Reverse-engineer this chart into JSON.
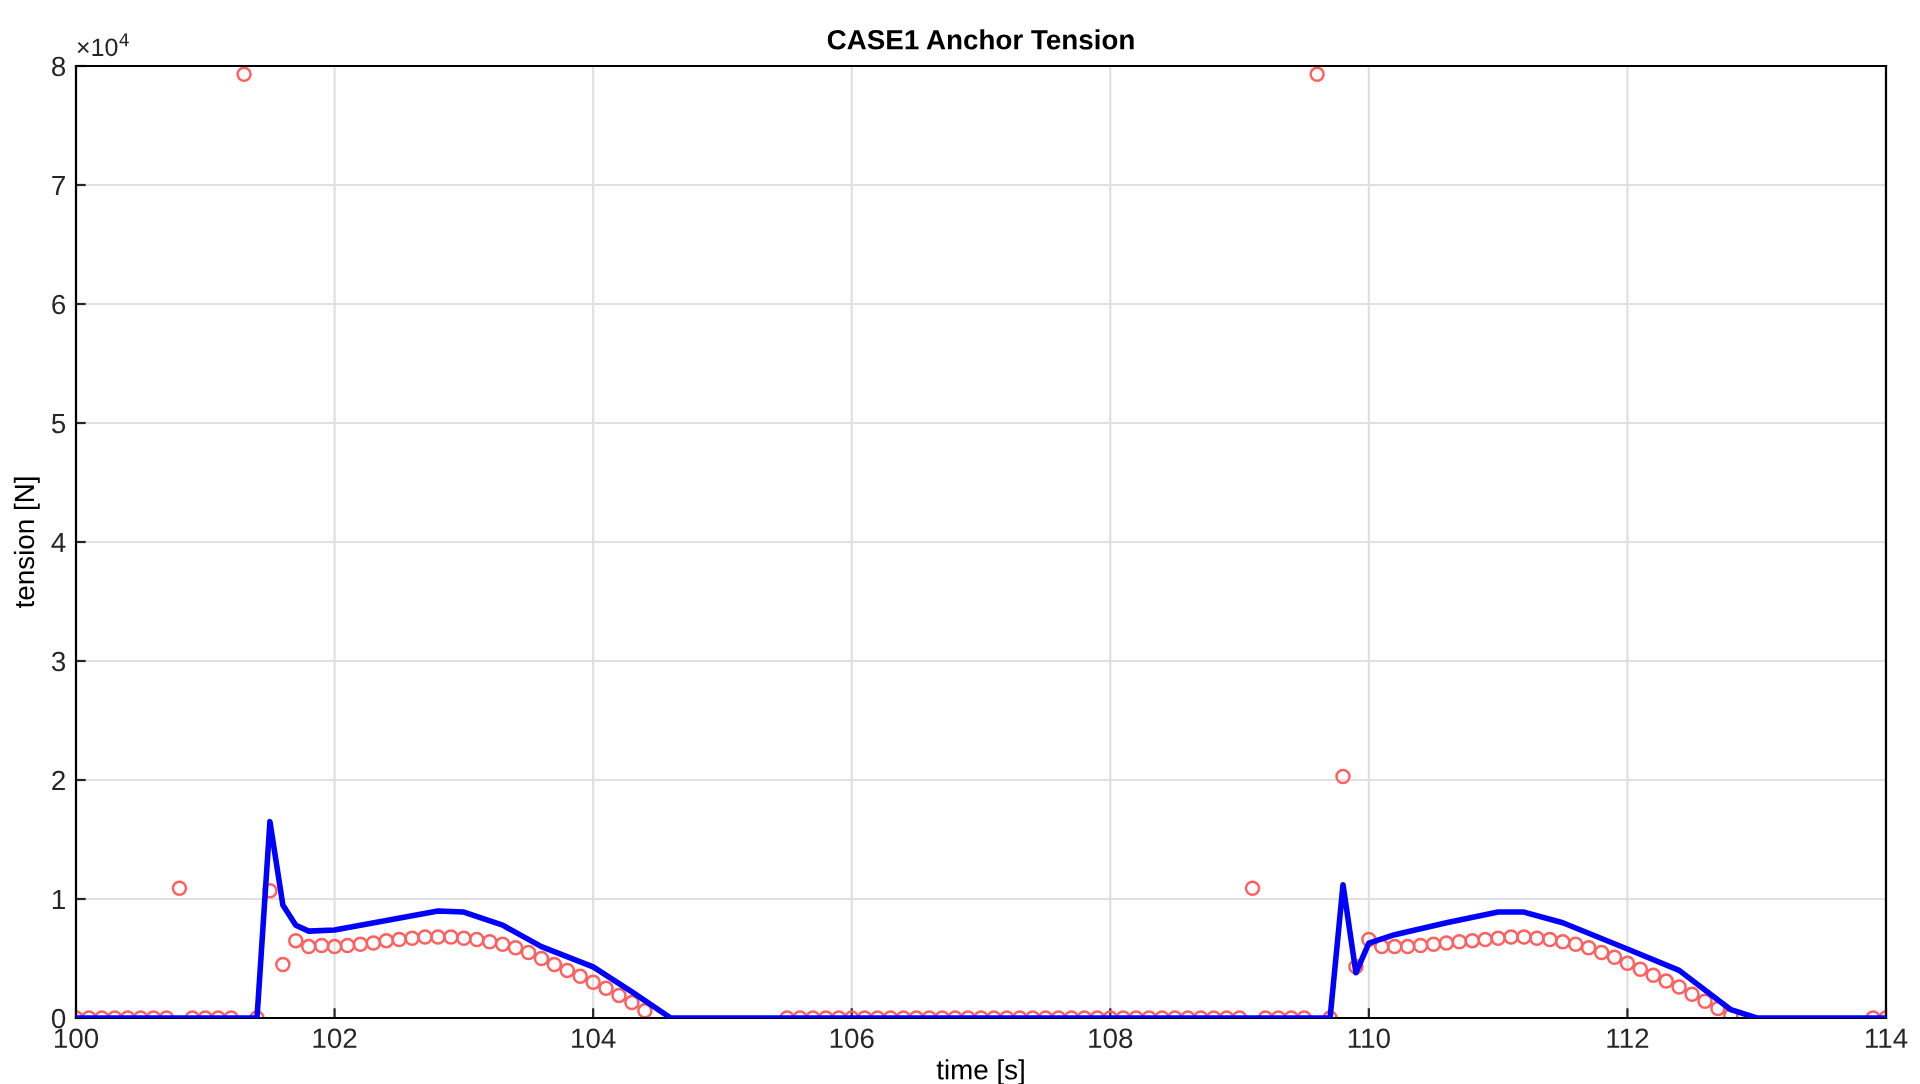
{
  "chart_data": {
    "type": "line",
    "title": "CASE1 Anchor Tension",
    "xlabel": "time [s]",
    "ylabel": "tension [N]",
    "annotations": [
      "×10$^{4}$"
    ],
    "xlim": [
      100,
      114
    ],
    "xticks": [
      100,
      102,
      104,
      106,
      108,
      110,
      112,
      114
    ],
    "ylim": [
      0,
      8
    ],
    "yticks": [
      0,
      1,
      2,
      3,
      4,
      5,
      6,
      7,
      8
    ],
    "grid": true,
    "series": [
      {
        "type": "scatter",
        "marker": "circle",
        "color": "#ff6060",
        "x": [
          100,
          100.1,
          100.2,
          100.3,
          100.4,
          100.5,
          100.6,
          100.7,
          100.8,
          100.9,
          101,
          101.1,
          101.2,
          101.3,
          101.4,
          101.5,
          101.6,
          101.7,
          101.8,
          101.9,
          102,
          102.1,
          102.2,
          102.3,
          102.4,
          102.5,
          102.6,
          102.7,
          102.8,
          102.9,
          103,
          103.1,
          103.2,
          103.3,
          103.4,
          103.5,
          103.6,
          103.7,
          103.8,
          103.9,
          104,
          104.1,
          104.2,
          104.3,
          104.4,
          105.5,
          105.6,
          105.7,
          105.8,
          105.9,
          106,
          106.1,
          106.2,
          106.3,
          106.4,
          106.5,
          106.6,
          106.7,
          106.8,
          106.9,
          107,
          107.1,
          107.2,
          107.3,
          107.4,
          107.5,
          107.6,
          107.7,
          107.8,
          107.9,
          108,
          108.1,
          108.2,
          108.3,
          108.4,
          108.5,
          108.6,
          108.7,
          108.8,
          108.9,
          109,
          109.1,
          109.2,
          109.3,
          109.4,
          109.5,
          109.6,
          109.7,
          109.8,
          109.9,
          110,
          110.1,
          110.2,
          110.3,
          110.4,
          110.5,
          110.6,
          110.7,
          110.8,
          110.9,
          111,
          111.1,
          111.2,
          111.3,
          111.4,
          111.5,
          111.6,
          111.7,
          111.8,
          111.9,
          112,
          112.1,
          112.2,
          112.3,
          112.4,
          112.5,
          112.6,
          112.7,
          112.8,
          113.9,
          114
        ],
        "values": [
          0,
          0,
          0,
          0,
          0,
          0,
          0,
          0,
          1.09,
          0,
          0,
          0,
          0,
          7.93,
          0,
          1.07,
          0.45,
          0.65,
          0.6,
          0.61,
          0.6,
          0.61,
          0.62,
          0.63,
          0.65,
          0.66,
          0.67,
          0.68,
          0.68,
          0.68,
          0.67,
          0.66,
          0.64,
          0.62,
          0.59,
          0.55,
          0.5,
          0.45,
          0.4,
          0.35,
          0.3,
          0.25,
          0.19,
          0.13,
          0.06,
          0,
          0,
          0,
          0,
          0,
          0,
          0,
          0,
          0,
          0,
          0,
          0,
          0,
          0,
          0,
          0,
          0,
          0,
          0,
          0,
          0,
          0,
          0,
          0,
          0,
          0,
          0,
          0,
          0,
          0,
          0,
          0,
          0,
          0,
          0,
          0,
          1.09,
          0,
          0,
          0,
          0,
          7.93,
          0,
          2.03,
          0.43,
          0.66,
          0.6,
          0.6,
          0.6,
          0.61,
          0.62,
          0.63,
          0.64,
          0.65,
          0.66,
          0.67,
          0.68,
          0.68,
          0.67,
          0.66,
          0.64,
          0.62,
          0.59,
          0.55,
          0.51,
          0.46,
          0.41,
          0.36,
          0.31,
          0.26,
          0.2,
          0.14,
          0.08,
          0.02,
          0,
          0
        ]
      },
      {
        "marker": "none",
        "line_style": "solid",
        "color": "#0000ff",
        "x": [
          100,
          101.4,
          101.5,
          101.6,
          101.7,
          101.8,
          102,
          102.4,
          102.8,
          103,
          103.3,
          103.6,
          104,
          104.3,
          104.6,
          109.7,
          109.8,
          109.9,
          110,
          110.2,
          110.6,
          111,
          111.2,
          111.5,
          112,
          112.4,
          112.8,
          113,
          114
        ],
        "values": [
          0,
          0,
          1.65,
          0.95,
          0.78,
          0.73,
          0.74,
          0.82,
          0.9,
          0.89,
          0.78,
          0.6,
          0.43,
          0.22,
          0,
          0,
          1.12,
          0.38,
          0.63,
          0.7,
          0.8,
          0.89,
          0.89,
          0.8,
          0.58,
          0.4,
          0.07,
          0,
          0
        ]
      }
    ]
  }
}
